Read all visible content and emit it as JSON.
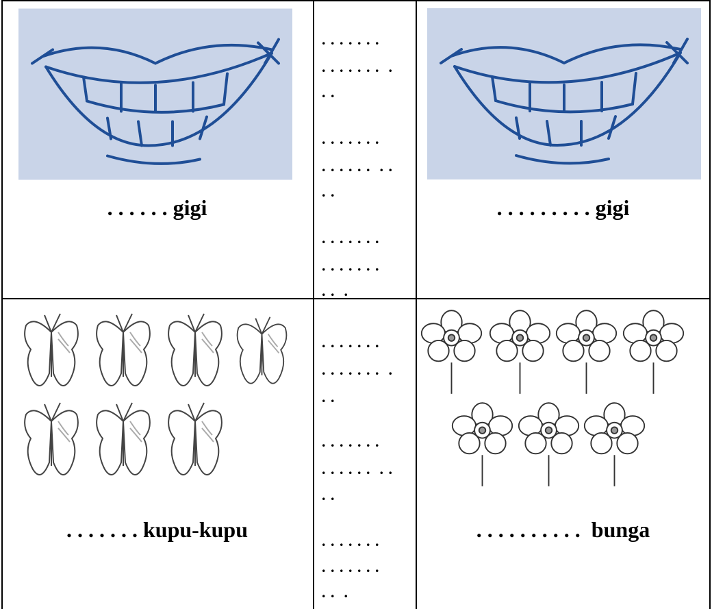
{
  "table": {
    "rows": [
      {
        "left_label": ". . . . . . gigi",
        "middle_lines": [
          ". . . . . . .",
          ". . . . . . .  .",
          ". .",
          ". . . . . . .",
          ". . . . . .  . .",
          ". .",
          ". . . . . . .",
          ". . . . . . .",
          ". .  ."
        ],
        "right_label": ". . . . . . . . . gigi"
      },
      {
        "left_label": ". . . . . . . kupu-kupu",
        "middle_lines": [
          ". . . . . . .",
          ". . . . . . .  .",
          ". .",
          ". . . . . . .",
          ". . . . . .  . .",
          ". .",
          ". . . . . . .",
          ". . . . . . .",
          ". .  ."
        ],
        "right_label": ". . . . . . . . . .  bunga"
      }
    ]
  }
}
